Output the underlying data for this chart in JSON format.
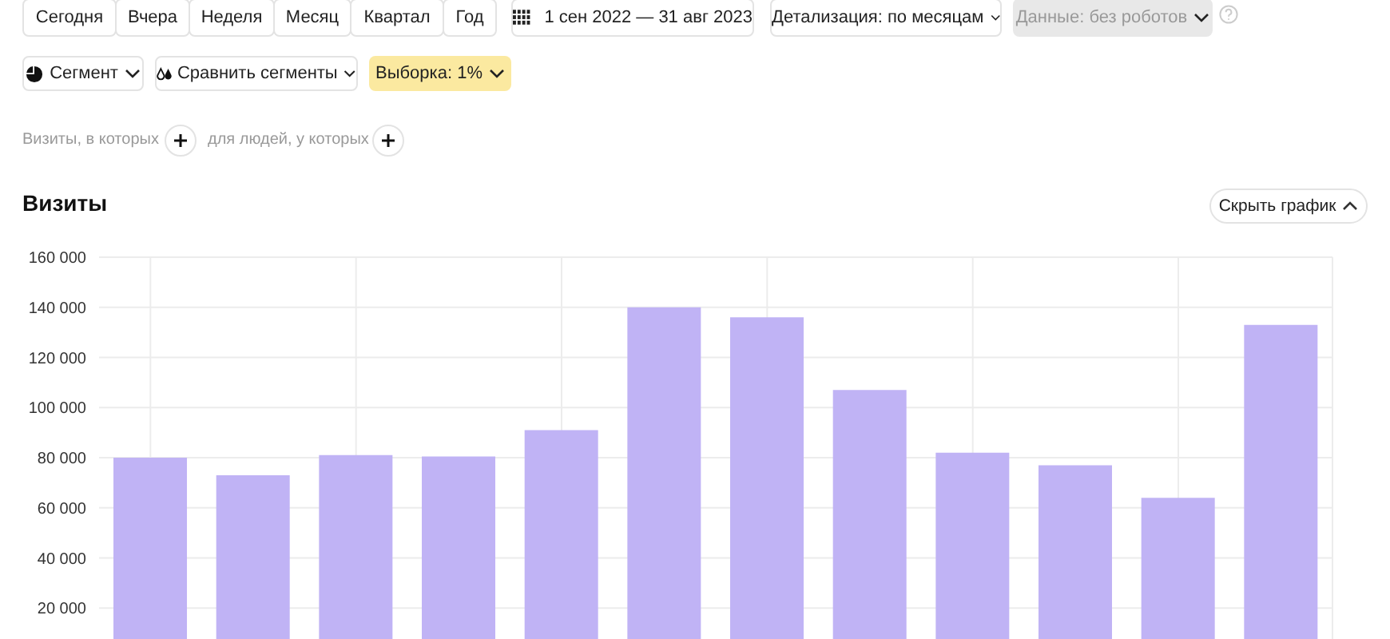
{
  "chart_data": {
    "type": "bar",
    "title": "Визиты",
    "annotations": [
      "Сегодня",
      "Вчера",
      "Неделя",
      "Месяц",
      "Квартал",
      "Год",
      "1 сен 2022 — 31 авг 2023",
      "Детализация: по месяцам",
      "Данные: без роботов",
      "Сегмент",
      "Сравнить сегменты",
      "Выборка: 1%",
      "Визиты, в которых",
      "для людей, у которых",
      "Скрыть график"
    ],
    "categories": [
      null,
      null,
      null,
      null,
      null,
      null,
      null,
      null,
      null,
      null,
      null,
      null
    ],
    "values": [
      80000,
      73000,
      81000,
      80500,
      91000,
      140000,
      136000,
      107000,
      82000,
      77000,
      64000,
      133000
    ],
    "color": "#c0b3f5",
    "ylim": [
      0,
      160000
    ],
    "yticks": [
      {
        "value": 20000,
        "label": "20 000"
      },
      {
        "value": 40000,
        "label": "40 000"
      },
      {
        "value": 60000,
        "label": "60 000"
      },
      {
        "value": 80000,
        "label": "80 000"
      },
      {
        "value": 100000,
        "label": "100 000"
      },
      {
        "value": 120000,
        "label": "120 000"
      },
      {
        "value": 140000,
        "label": "140 000"
      },
      {
        "value": 160000,
        "label": "160 000"
      }
    ],
    "grid": true,
    "tick_labels": "y"
  }
}
